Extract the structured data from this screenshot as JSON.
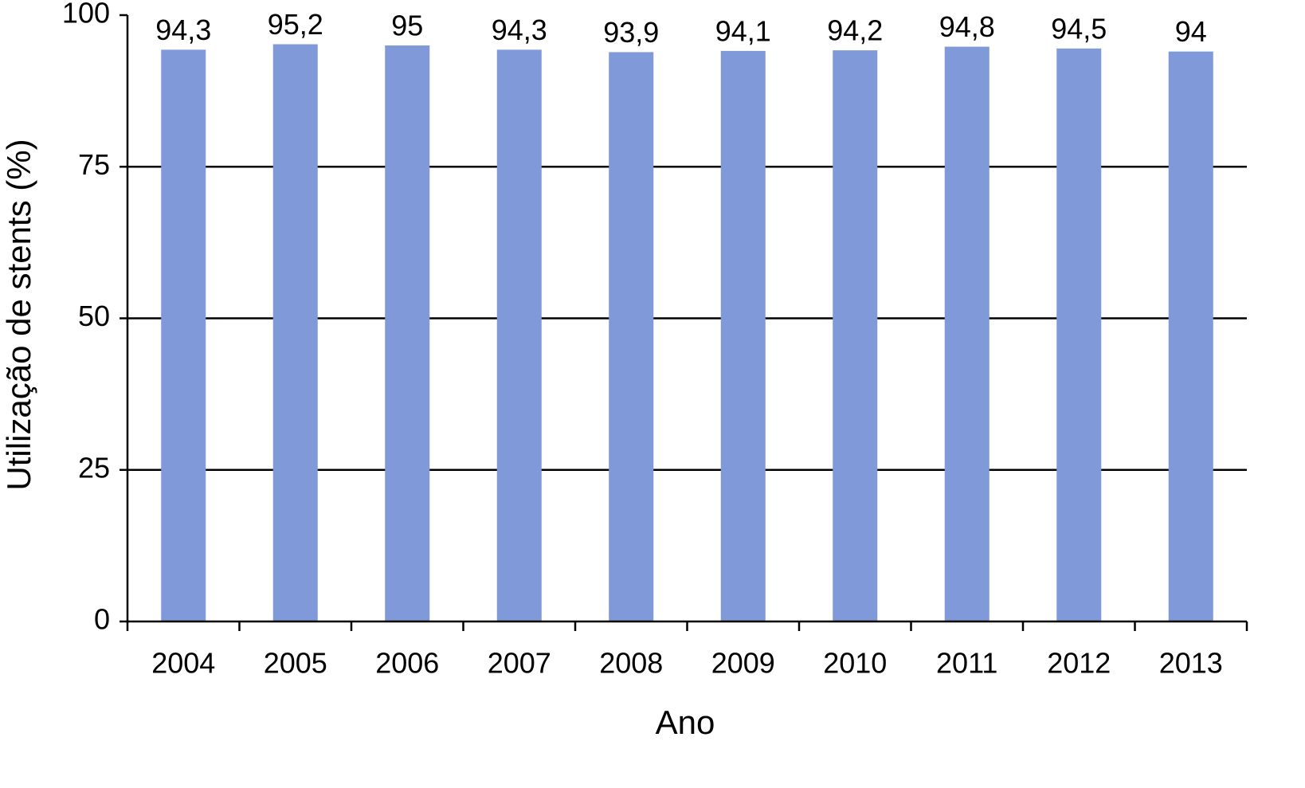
{
  "chart_data": {
    "type": "bar",
    "x_label": "Ano",
    "y_label": "Utilização de stents (%)",
    "categories": [
      "2004",
      "2005",
      "2006",
      "2007",
      "2008",
      "2009",
      "2010",
      "2011",
      "2012",
      "2013"
    ],
    "values": [
      94.3,
      95.2,
      95,
      94.3,
      93.9,
      94.1,
      94.2,
      94.8,
      94.5,
      94
    ],
    "value_labels": [
      "94,3",
      "95,2",
      "95",
      "94,3",
      "93,9",
      "94,1",
      "94,2",
      "94,8",
      "94,5",
      "94"
    ],
    "color": "#7f99d9",
    "ylim": [
      0,
      100
    ],
    "yticks": [
      0,
      25,
      50,
      75,
      100
    ],
    "grid": true
  }
}
